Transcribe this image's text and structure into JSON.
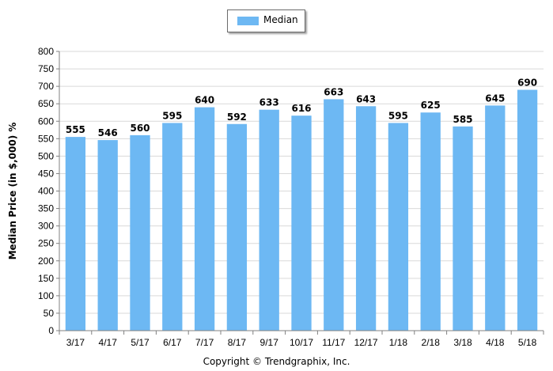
{
  "chart_data": {
    "type": "bar",
    "categories": [
      "3/17",
      "4/17",
      "5/17",
      "6/17",
      "7/17",
      "8/17",
      "9/17",
      "10/17",
      "11/17",
      "12/17",
      "1/18",
      "2/18",
      "3/18",
      "4/18",
      "5/18"
    ],
    "series": [
      {
        "name": "Median",
        "values": [
          555,
          546,
          560,
          595,
          640,
          592,
          633,
          616,
          663,
          643,
          595,
          625,
          585,
          645,
          690
        ]
      }
    ],
    "ylabel": "Median Price (in $,000) %",
    "ylim": [
      0,
      800
    ],
    "yticks": [
      0,
      50,
      100,
      150,
      200,
      250,
      300,
      350,
      400,
      450,
      500,
      550,
      600,
      650,
      700,
      750,
      800
    ],
    "grid": true,
    "legend_position": "top-center",
    "bar_color": "#6db8f3",
    "grid_color": "#d9d9d9"
  },
  "legend": {
    "label": "Median"
  },
  "footer": {
    "copyright": "Copyright © Trendgraphix, Inc."
  }
}
